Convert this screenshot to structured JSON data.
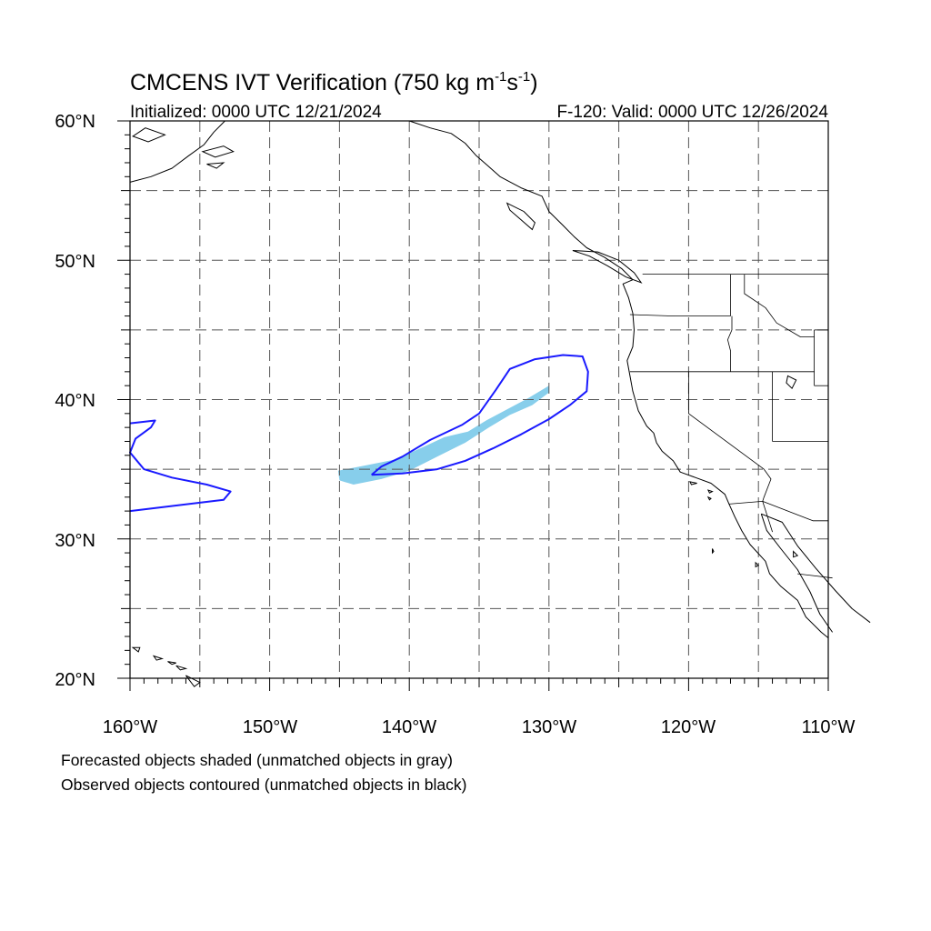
{
  "title": {
    "main": "CMCENS IVT Verification (750 kg m",
    "sup1": "-1",
    "mid": "s",
    "sup2": "-1",
    "end": ")"
  },
  "subtitle_left": "Initialized: 0000 UTC 12/21/2024",
  "subtitle_right": "F-120: Valid: 0000 UTC 12/26/2024",
  "lat_labels": [
    "60°N",
    "50°N",
    "40°N",
    "30°N",
    "20°N"
  ],
  "lon_labels": [
    "160°W",
    "150°W",
    "140°W",
    "130°W",
    "120°W",
    "110°W"
  ],
  "legend": {
    "line1": "Forecasted objects shaded (unmatched objects in gray)",
    "line2": "Observed objects contoured (unmatched objects in black)"
  },
  "colors": {
    "forecast_fill": "#87CEEB",
    "observed_contour": "#1a1aff",
    "coastline": "#000000",
    "grid": "#555555"
  },
  "map": {
    "lon_range": [
      -160,
      -110
    ],
    "lat_range": [
      20,
      60
    ],
    "grid_spacing_deg": 5,
    "gridlines": "dashed"
  },
  "objects": {
    "forecast": [
      {
        "name": "forecast-ar-object",
        "lonlat": [
          [
            -145.1,
            34.9
          ],
          [
            -143.0,
            35.3
          ],
          [
            -141.0,
            35.7
          ],
          [
            -139.0,
            36.6
          ],
          [
            -137.5,
            37.3
          ],
          [
            -135.8,
            37.7
          ],
          [
            -134.5,
            38.5
          ],
          [
            -133.0,
            39.3
          ],
          [
            -131.5,
            40.1
          ],
          [
            -130.0,
            41.0
          ],
          [
            -130.0,
            40.5
          ],
          [
            -131.2,
            39.6
          ],
          [
            -132.8,
            38.9
          ],
          [
            -134.3,
            38.0
          ],
          [
            -136.0,
            36.9
          ],
          [
            -138.0,
            35.9
          ],
          [
            -140.0,
            34.9
          ],
          [
            -142.0,
            34.3
          ],
          [
            -144.0,
            33.9
          ],
          [
            -145.0,
            34.2
          ]
        ]
      }
    ],
    "observed": [
      {
        "name": "observed-ar-contour-east",
        "lonlat": [
          [
            -142.7,
            34.6
          ],
          [
            -140.5,
            34.7
          ],
          [
            -138.0,
            35.0
          ],
          [
            -136.0,
            35.6
          ],
          [
            -134.0,
            36.5
          ],
          [
            -132.0,
            37.5
          ],
          [
            -130.0,
            38.6
          ],
          [
            -128.5,
            39.6
          ],
          [
            -127.3,
            40.6
          ],
          [
            -127.2,
            42.0
          ],
          [
            -127.6,
            43.1
          ],
          [
            -129.0,
            43.2
          ],
          [
            -131.0,
            42.9
          ],
          [
            -132.8,
            42.2
          ],
          [
            -133.8,
            40.7
          ],
          [
            -135.0,
            39.0
          ],
          [
            -136.2,
            38.2
          ],
          [
            -138.5,
            37.1
          ],
          [
            -140.5,
            35.9
          ],
          [
            -142.0,
            35.2
          ],
          [
            -142.7,
            34.6
          ]
        ]
      },
      {
        "name": "observed-ar-contour-west",
        "lonlat": [
          [
            -160.0,
            38.3
          ],
          [
            -158.2,
            38.5
          ],
          [
            -158.5,
            38.0
          ],
          [
            -159.6,
            37.2
          ],
          [
            -160.0,
            36.2
          ],
          [
            -159.0,
            35.0
          ],
          [
            -157.0,
            34.4
          ],
          [
            -154.5,
            33.9
          ],
          [
            -152.8,
            33.4
          ],
          [
            -153.3,
            32.8
          ],
          [
            -155.0,
            32.6
          ],
          [
            -157.5,
            32.3
          ],
          [
            -160.0,
            32.0
          ]
        ]
      }
    ]
  },
  "land": {
    "alaska_coast": [
      [
        -160.0,
        55.6
      ],
      [
        -158.5,
        56.0
      ],
      [
        -157.0,
        56.6
      ],
      [
        -155.8,
        57.5
      ],
      [
        -154.7,
        58.3
      ],
      [
        -154.0,
        59.2
      ],
      [
        -153.2,
        60.0
      ]
    ],
    "alaska_islands": [
      [
        [
          -159.8,
          58.9
        ],
        [
          -158.9,
          59.5
        ],
        [
          -157.5,
          59.0
        ],
        [
          -158.7,
          58.5
        ],
        [
          -159.8,
          58.9
        ]
      ],
      [
        [
          -154.8,
          57.8
        ],
        [
          -153.3,
          58.2
        ],
        [
          -152.6,
          57.8
        ],
        [
          -153.9,
          57.4
        ],
        [
          -154.8,
          57.8
        ]
      ],
      [
        [
          -154.5,
          56.9
        ],
        [
          -153.3,
          57.0
        ],
        [
          -153.8,
          56.6
        ],
        [
          -154.5,
          56.9
        ]
      ]
    ],
    "north_america_coast": [
      [
        -140.0,
        60.0
      ],
      [
        -138.5,
        59.5
      ],
      [
        -137.0,
        59.1
      ],
      [
        -136.0,
        58.4
      ],
      [
        -135.2,
        57.5
      ],
      [
        -134.4,
        56.8
      ],
      [
        -133.5,
        56.0
      ],
      [
        -132.0,
        55.2
      ],
      [
        -130.5,
        54.6
      ],
      [
        -130.0,
        53.5
      ],
      [
        -129.0,
        52.5
      ],
      [
        -128.2,
        51.7
      ],
      [
        -127.3,
        50.9
      ],
      [
        -126.0,
        50.2
      ],
      [
        -124.8,
        49.4
      ],
      [
        -124.0,
        48.6
      ],
      [
        -124.7,
        48.3
      ],
      [
        -124.3,
        47.3
      ],
      [
        -124.0,
        46.2
      ],
      [
        -123.9,
        45.0
      ],
      [
        -124.0,
        43.8
      ],
      [
        -124.4,
        42.8
      ],
      [
        -124.2,
        41.7
      ],
      [
        -124.0,
        40.6
      ],
      [
        -123.6,
        39.2
      ],
      [
        -123.0,
        38.1
      ],
      [
        -122.5,
        37.6
      ],
      [
        -122.3,
        36.9
      ],
      [
        -121.9,
        36.3
      ],
      [
        -121.1,
        35.6
      ],
      [
        -120.6,
        34.8
      ],
      [
        -119.5,
        34.4
      ],
      [
        -118.4,
        34.0
      ],
      [
        -117.4,
        33.2
      ],
      [
        -117.1,
        32.5
      ],
      [
        -116.7,
        31.6
      ],
      [
        -116.2,
        30.6
      ],
      [
        -115.6,
        29.6
      ],
      [
        -114.5,
        28.4
      ],
      [
        -114.2,
        27.5
      ],
      [
        -113.4,
        26.6
      ],
      [
        -112.2,
        25.6
      ],
      [
        -111.6,
        24.4
      ],
      [
        -110.5,
        23.3
      ],
      [
        -110.0,
        22.9
      ]
    ],
    "vancouver_island": [
      [
        -128.3,
        50.7
      ],
      [
        -127.1,
        50.3
      ],
      [
        -125.8,
        49.6
      ],
      [
        -124.5,
        48.8
      ],
      [
        -123.4,
        48.4
      ],
      [
        -123.9,
        49.1
      ],
      [
        -125.0,
        50.0
      ],
      [
        -126.5,
        50.6
      ],
      [
        -128.3,
        50.7
      ]
    ],
    "haida_gwaii": [
      [
        -133.0,
        54.1
      ],
      [
        -131.8,
        53.5
      ],
      [
        -131.0,
        52.7
      ],
      [
        -131.2,
        52.2
      ],
      [
        -132.0,
        52.9
      ],
      [
        -132.8,
        53.6
      ],
      [
        -133.0,
        54.1
      ]
    ],
    "baja_east_coast": [
      [
        -114.8,
        31.8
      ],
      [
        -114.4,
        30.6
      ],
      [
        -113.4,
        29.3
      ],
      [
        -112.2,
        27.8
      ],
      [
        -111.3,
        26.2
      ],
      [
        -110.6,
        24.6
      ],
      [
        -109.7,
        23.3
      ]
    ],
    "mexico_mainland_coast": [
      [
        -114.8,
        31.8
      ],
      [
        -113.3,
        31.2
      ],
      [
        -112.2,
        29.5
      ],
      [
        -110.9,
        27.9
      ],
      [
        -109.5,
        26.3
      ],
      [
        -108.3,
        25.0
      ],
      [
        -107.0,
        24.0
      ]
    ],
    "islands_small": [
      [
        [
          -119.9,
          34.1
        ],
        [
          -119.4,
          34.0
        ],
        [
          -119.8,
          33.9
        ],
        [
          -119.9,
          34.1
        ]
      ],
      [
        [
          -118.6,
          33.5
        ],
        [
          -118.3,
          33.4
        ],
        [
          -118.5,
          33.3
        ],
        [
          -118.6,
          33.5
        ]
      ],
      [
        [
          -118.6,
          33.0
        ],
        [
          -118.4,
          32.9
        ],
        [
          -118.5,
          32.8
        ],
        [
          -118.6,
          33.0
        ]
      ],
      [
        [
          -118.3,
          29.3
        ],
        [
          -118.2,
          29.1
        ],
        [
          -118.3,
          29.0
        ],
        [
          -118.3,
          29.3
        ]
      ],
      [
        [
          -115.2,
          28.3
        ],
        [
          -115.0,
          28.1
        ],
        [
          -115.2,
          28.0
        ],
        [
          -115.2,
          28.3
        ]
      ],
      [
        [
          -112.5,
          29.1
        ],
        [
          -112.2,
          28.8
        ],
        [
          -112.5,
          28.7
        ],
        [
          -112.5,
          29.1
        ]
      ]
    ],
    "hawaii": [
      [
        [
          -159.8,
          22.2
        ],
        [
          -159.3,
          22.2
        ],
        [
          -159.4,
          21.9
        ],
        [
          -159.8,
          22.2
        ]
      ],
      [
        [
          -158.3,
          21.6
        ],
        [
          -157.7,
          21.4
        ],
        [
          -158.1,
          21.3
        ],
        [
          -158.3,
          21.6
        ]
      ],
      [
        [
          -157.3,
          21.2
        ],
        [
          -156.7,
          21.1
        ],
        [
          -157.0,
          21.0
        ],
        [
          -157.3,
          21.2
        ]
      ],
      [
        [
          -156.7,
          20.9
        ],
        [
          -156.0,
          20.7
        ],
        [
          -156.4,
          20.6
        ],
        [
          -156.7,
          20.9
        ]
      ],
      [
        [
          -156.0,
          20.2
        ],
        [
          -155.0,
          19.7
        ],
        [
          -155.4,
          19.4
        ],
        [
          -156.0,
          20.2
        ]
      ]
    ],
    "borders": [
      [
        [
          -123.3,
          49.0
        ],
        [
          -110.0,
          49.0
        ]
      ],
      [
        [
          -117.0,
          49.0
        ],
        [
          -117.0,
          46.0
        ]
      ],
      [
        [
          -124.2,
          46.1
        ],
        [
          -121.0,
          46.0
        ],
        [
          -119.0,
          46.0
        ],
        [
          -117.0,
          46.0
        ]
      ],
      [
        [
          -124.2,
          42.0
        ],
        [
          -111.0,
          42.0
        ]
      ],
      [
        [
          -120.0,
          42.0
        ],
        [
          -120.0,
          39.0
        ],
        [
          -114.6,
          35.0
        ]
      ],
      [
        [
          -116.9,
          46.0
        ],
        [
          -116.9,
          45.0
        ],
        [
          -117.2,
          44.3
        ],
        [
          -117.0,
          43.5
        ],
        [
          -117.0,
          42.0
        ]
      ],
      [
        [
          -114.0,
          42.0
        ],
        [
          -114.0,
          37.0
        ]
      ],
      [
        [
          -114.6,
          35.0
        ],
        [
          -114.1,
          34.3
        ],
        [
          -114.6,
          33.0
        ],
        [
          -114.7,
          32.7
        ]
      ],
      [
        [
          -117.1,
          32.5
        ],
        [
          -114.7,
          32.7
        ],
        [
          -111.1,
          31.3
        ],
        [
          -110.0,
          31.3
        ]
      ],
      [
        [
          -111.0,
          45.0
        ],
        [
          -110.0,
          45.0
        ]
      ],
      [
        [
          -111.0,
          41.0
        ],
        [
          -110.0,
          41.0
        ]
      ],
      [
        [
          -114.0,
          37.0
        ],
        [
          -110.0,
          37.0
        ]
      ],
      [
        [
          -111.0,
          45.0
        ],
        [
          -111.0,
          41.0
        ]
      ],
      [
        [
          -116.0,
          49.0
        ],
        [
          -116.0,
          47.6
        ],
        [
          -114.5,
          46.6
        ],
        [
          -113.7,
          45.5
        ],
        [
          -112.0,
          44.5
        ],
        [
          -111.0,
          44.5
        ]
      ],
      [
        [
          -114.7,
          32.7
        ],
        [
          -114.0,
          30.5
        ]
      ],
      [
        [
          -112.2,
          27.5
        ],
        [
          -109.7,
          27.2
        ]
      ]
    ],
    "inland_lakes": [
      [
        [
          -112.9,
          41.7
        ],
        [
          -112.3,
          41.4
        ],
        [
          -112.6,
          40.8
        ],
        [
          -113.0,
          41.2
        ],
        [
          -112.9,
          41.7
        ]
      ]
    ]
  }
}
